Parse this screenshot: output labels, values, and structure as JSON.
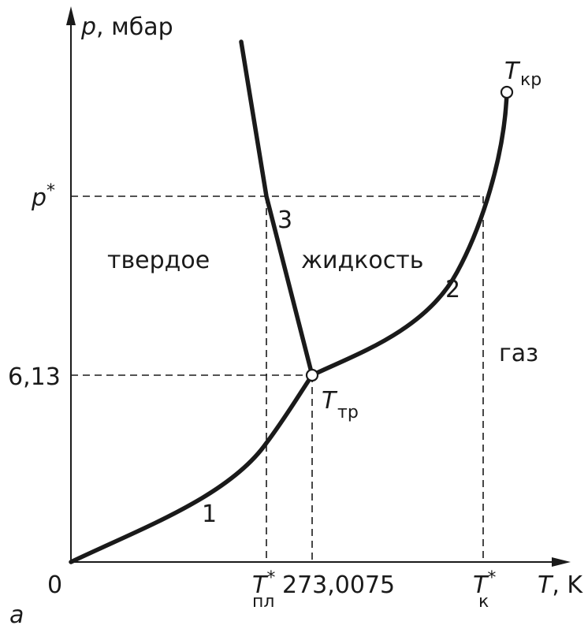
{
  "axes": {
    "y_label": {
      "symbol": "p",
      "unit": ", мбар"
    },
    "x_label": {
      "symbol": "T",
      "unit": ", K"
    },
    "origin": "0"
  },
  "ticks": {
    "y_star": {
      "main": "p",
      "sup": "*"
    },
    "y_value": "6,13",
    "x_melt": {
      "main": "T",
      "sup": "*",
      "sub": "пл"
    },
    "x_value": "273,0075",
    "x_k": {
      "main": "T",
      "sup": "*",
      "sub": "к"
    }
  },
  "points": {
    "critical": {
      "main": "T",
      "sub": "кр"
    },
    "triple": {
      "main": "T",
      "sub": "тр"
    }
  },
  "regions": {
    "solid": "твердое",
    "liquid": "жидкость",
    "gas": "газ"
  },
  "curves": {
    "c1": "1",
    "c2": "2",
    "c3": "3"
  },
  "panel_letter": "a"
}
